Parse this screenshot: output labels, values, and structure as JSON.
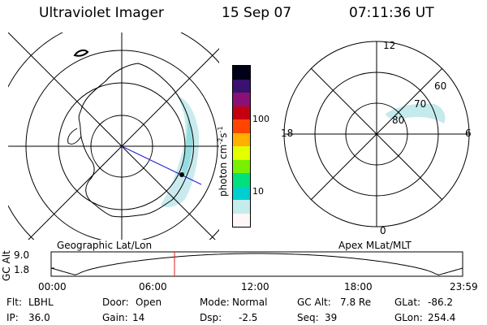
{
  "header": {
    "instrument": "Ultraviolet Imager",
    "date": "15 Sep 07",
    "time": "07:11:36 UT"
  },
  "left_map": {
    "caption": "Geographic Lat/Lon"
  },
  "color_bar": {
    "unit_label": "photon cm",
    "unit_sup1": "-2",
    "unit_s": "s",
    "unit_sup2": "-1",
    "ticks": [
      "100",
      "10"
    ],
    "colors": [
      "#fff7f7",
      "#c4ecec",
      "#00cfcf",
      "#00e07c",
      "#78f000",
      "#e4ff00",
      "#ffb000",
      "#ff4400",
      "#c40010",
      "#8a1078",
      "#3a1070",
      "#000018"
    ]
  },
  "right_map": {
    "caption": "Apex MLat/MLT",
    "mlt_labels": {
      "top": "12",
      "right": "6",
      "bottom": "0",
      "left": "18"
    },
    "lat_labels": [
      "60",
      "70",
      "80"
    ]
  },
  "altitude_plot": {
    "ylabel": "GC Alt",
    "yticks": [
      "9.0",
      "1.8"
    ],
    "xticks": [
      "00:00",
      "06:00",
      "12:00",
      "18:00",
      "23:59"
    ],
    "marker_time_hours": 7.193
  },
  "status": {
    "row1": [
      {
        "label": "Flt:",
        "value": "LBHL"
      },
      {
        "label": "Door:",
        "value": "Open"
      },
      {
        "label": "Mode:",
        "value": "Normal"
      },
      {
        "label": "GC Alt:",
        "value": "7.8 Re"
      },
      {
        "label": "GLat:",
        "value": "-86.2"
      }
    ],
    "row2": [
      {
        "label": "IP:",
        "value": "36.0"
      },
      {
        "label": "Gain:",
        "value": "14"
      },
      {
        "label": "Dsp:",
        "value": "-2.5"
      },
      {
        "label": "Seq:",
        "value": "39"
      },
      {
        "label": "GLon:",
        "value": "254.4"
      }
    ]
  }
}
